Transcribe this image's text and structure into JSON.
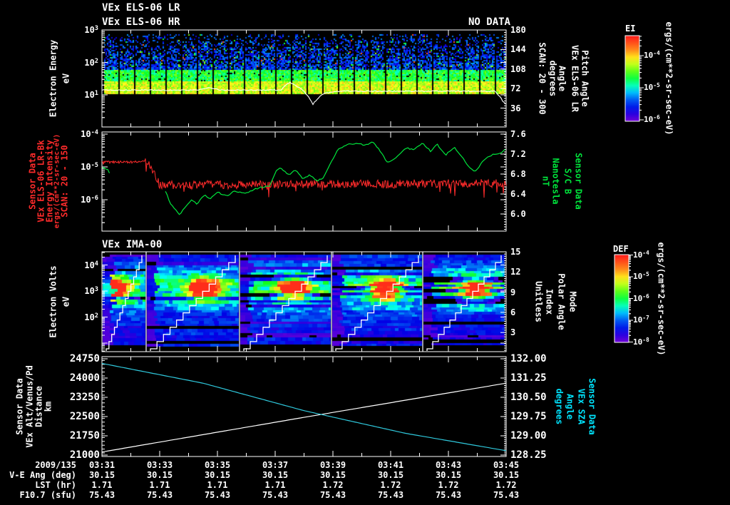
{
  "header": {
    "title_line1": "VEx ELS-06 LR",
    "title_line2": "VEx ELS-06 HR",
    "no_data": "NO DATA"
  },
  "panel3_title": "VEx IMA-00",
  "footer": {
    "date": "2009/135",
    "times": [
      "03:31",
      "03:33",
      "03:35",
      "03:37",
      "03:39",
      "03:41",
      "03:43",
      "03:45"
    ],
    "rows": [
      {
        "label": "V-E Ang (deg)",
        "values": [
          "30.15",
          "30.15",
          "30.15",
          "30.15",
          "30.15",
          "30.15",
          "30.15",
          "30.15"
        ]
      },
      {
        "label": "LST (hr)",
        "values": [
          "1.71",
          "1.71",
          "1.71",
          "1.71",
          "1.72",
          "1.72",
          "1.72",
          "1.72"
        ]
      },
      {
        "label": "F10.7 (sfu)",
        "values": [
          "75.43",
          "75.43",
          "75.43",
          "75.43",
          "75.43",
          "75.43",
          "75.43",
          "75.43"
        ]
      }
    ]
  },
  "axes": {
    "p1": {
      "left_title": [
        "Electron Energy",
        "eV"
      ],
      "left_ticks": [
        "10^3",
        "10^2",
        "10^1"
      ],
      "right_ticks": [
        "180",
        "144",
        "108",
        "72",
        "36"
      ],
      "right_cols": [
        "SCAN: 20 - 300",
        "degrees",
        "Angle",
        "VEx ELS-06 LR",
        "Pitch Angle"
      ]
    },
    "p2": {
      "left_cols": [
        "Sensor Data",
        "VEx ELS-06 LR-Bk",
        "Energy Intensity",
        "ergs/(cm**2-sr-sec-eV)",
        "SCAN: 20 - 150"
      ],
      "left_ticks": [
        "10^-4",
        "10^-5",
        "10^-6"
      ],
      "right_ticks": [
        "7.6",
        "7.2",
        "6.8",
        "6.4",
        "6.0"
      ],
      "right_cols": [
        "nT",
        "Nanotesla",
        "S/C B",
        "Sensor Data"
      ]
    },
    "p3": {
      "left_title": [
        "Electron Volts",
        "eV"
      ],
      "left_ticks": [
        "10^4",
        "10^3",
        "10^2"
      ],
      "right_ticks": [
        "15",
        "12",
        "9",
        "6",
        "3"
      ],
      "right_cols": [
        "Unitless",
        "Index",
        "Polar Angle",
        "Mode"
      ]
    },
    "p4": {
      "left_cols": [
        "Sensor Data",
        "VEx Alt/Venus/Pd",
        "Distance",
        "km"
      ],
      "left_ticks": [
        "24750",
        "24000",
        "23250",
        "22500",
        "21750",
        "21000"
      ],
      "right_ticks": [
        "132.00",
        "131.25",
        "130.50",
        "129.75",
        "129.00",
        "128.25"
      ],
      "right_cols": [
        "degrees",
        "Angle",
        "VEx SZA",
        "Sensor Data"
      ]
    }
  },
  "colorbars": [
    {
      "title": "EI",
      "ticks": [
        "10^-4",
        "10^-5",
        "10^-6"
      ],
      "units": "ergs/(cm**2-sr-sec-eV)"
    },
    {
      "title": "DEF",
      "ticks": [
        "10^-4",
        "10^-5",
        "10^-6",
        "10^-7",
        "10^-8"
      ],
      "units": "ergs/(cm**2-sr-sec-eV)"
    }
  ],
  "colors": {
    "red": "#ff2b2b",
    "green": "#00e53c",
    "cyan_label": "#00e5ff",
    "cyan_line": "#2fc8dc",
    "white": "#ffffff"
  },
  "chart_data": [
    {
      "id": "panel1",
      "type": "heatmap",
      "title": "VEx ELS-06 LR",
      "title2": "VEx ELS-06 HR",
      "annotation": "NO DATA",
      "x_axis": {
        "start": "2009/135 03:31",
        "end": "2009/135 03:45",
        "major_tick_minutes": 2,
        "minor_tick_minutes": 1
      },
      "y_axis": {
        "label": "Electron Energy (eV)",
        "scale": "log",
        "ticks": [
          "10^3",
          "10^2",
          "10^1"
        ],
        "range_ev": [
          1,
          1000
        ]
      },
      "y2_axis": {
        "label": "Pitch Angle / VEx ELS-06 LR / Angle / degrees / SCAN: 20 - 300",
        "ticks": [
          180,
          144,
          108,
          72,
          36
        ],
        "range": [
          0,
          180
        ]
      },
      "colorbar": {
        "title": "EI",
        "units": "ergs/(cm**2-sr-sec-eV)",
        "ticks": [
          "10^-4",
          "10^-5",
          "10^-6"
        ]
      },
      "features": {
        "bright_band_ev": [
          10,
          40
        ],
        "speckle_max_ev": 900,
        "sweep_gap_seconds": 32
      },
      "trace_ev_vs_min": [
        [
          0,
          14
        ],
        [
          3.3,
          14
        ],
        [
          3.7,
          17
        ],
        [
          4.1,
          14
        ],
        [
          6.2,
          14
        ],
        [
          6.5,
          24
        ],
        [
          6.9,
          15
        ],
        [
          7.3,
          5
        ],
        [
          7.7,
          11
        ],
        [
          8.2,
          13
        ],
        [
          13.6,
          13
        ],
        [
          13.9,
          6
        ],
        [
          14,
          5
        ]
      ]
    },
    {
      "id": "panel2",
      "type": "line",
      "y_axis": {
        "scale": "log",
        "ticks": [
          "10^-4",
          "10^-5",
          "10^-6"
        ]
      },
      "y2_axis": {
        "ticks": [
          7.6,
          7.2,
          6.8,
          6.4,
          6.0
        ],
        "range": [
          7.64,
          5.66
        ]
      },
      "series": [
        {
          "name": "VEx ELS-06 LR-Bk Energy Intensity",
          "units": "ergs/(cm**2-sr-sec-eV)",
          "scan": "SCAN: 20 - 150",
          "color_key": "red",
          "scale": "log10",
          "base_points": [
            [
              0,
              -4.85
            ],
            [
              1.55,
              -4.85
            ],
            [
              1.8,
              -5.2
            ],
            [
              2.0,
              -5.55
            ],
            [
              14,
              -5.5
            ]
          ],
          "noise_dex": 0.13
        },
        {
          "name": "S/C B",
          "units": "nT (Nanotesla)",
          "color_key": "green",
          "points": [
            [
              0.02,
              6.93
            ],
            [
              0.18,
              6.9
            ],
            [
              0.3,
              6.78
            ],
            null,
            [
              2.2,
              6.45
            ],
            [
              2.4,
              6.18
            ],
            [
              2.7,
              5.97
            ],
            [
              2.85,
              6.12
            ],
            [
              3.1,
              6.28
            ],
            [
              3.3,
              6.2
            ],
            [
              3.55,
              6.38
            ],
            [
              3.75,
              6.3
            ],
            [
              4,
              6.44
            ],
            [
              4.3,
              6.36
            ],
            [
              4.6,
              6.46
            ],
            [
              5,
              6.42
            ],
            [
              5.4,
              6.52
            ],
            [
              5.8,
              6.56
            ],
            [
              6.05,
              6.88
            ],
            [
              6.2,
              6.93
            ],
            [
              6.45,
              6.78
            ],
            [
              6.7,
              6.88
            ],
            [
              6.95,
              6.72
            ],
            [
              7.2,
              6.78
            ],
            [
              7.45,
              6.65
            ],
            [
              7.7,
              6.75
            ],
            [
              7.95,
              7.05
            ],
            [
              8.15,
              7.28
            ],
            [
              8.45,
              7.38
            ],
            [
              8.8,
              7.42
            ],
            [
              9.1,
              7.38
            ],
            [
              9.4,
              7.44
            ],
            [
              9.65,
              7.25
            ],
            [
              9.9,
              7.02
            ],
            [
              10.15,
              7.1
            ],
            [
              10.5,
              7.32
            ],
            [
              10.8,
              7.3
            ],
            [
              11.1,
              7.42
            ],
            [
              11.4,
              7.25
            ],
            [
              11.6,
              7.4
            ],
            [
              11.9,
              7.18
            ],
            [
              12.2,
              7.34
            ],
            [
              12.5,
              7.12
            ],
            [
              12.75,
              6.92
            ],
            [
              12.95,
              6.85
            ],
            [
              13.2,
              7.08
            ],
            [
              13.5,
              7.18
            ],
            [
              13.8,
              7.22
            ],
            [
              14,
              7.3
            ]
          ]
        }
      ]
    },
    {
      "id": "panel3",
      "type": "heatmap",
      "title": "VEx IMA-00",
      "y_axis": {
        "label": "Electron Volts (eV)",
        "scale": "log",
        "ticks": [
          "10^4",
          "10^3",
          "10^2"
        ]
      },
      "y2_axis": {
        "label": "Mode / Polar Angle / Index / Unitless",
        "ticks": [
          15,
          12,
          9,
          6,
          3
        ],
        "range": [
          0,
          15
        ]
      },
      "colorbar": {
        "title": "DEF",
        "units": "ergs/(cm**2-sr-sec-eV)",
        "ticks": [
          "10^-4",
          "10^-5",
          "10^-6",
          "10^-7",
          "10^-8"
        ]
      },
      "features": {
        "beam_energy_ev": 1000,
        "beam_centers_min": [
          0.4,
          3.53,
          6.67,
          9.8,
          12.94
        ],
        "cycle_bounds_min": [
          1.53,
          4.77,
          7.95,
          11.11
        ],
        "polar_ramp": "staircase 0-15 each cycle"
      }
    },
    {
      "id": "panel4",
      "type": "line",
      "y_axis": {
        "ticks": [
          24750,
          24000,
          23250,
          22500,
          21750,
          21000
        ],
        "range": [
          24750,
          21000
        ]
      },
      "y2_axis": {
        "ticks": [
          "132.00",
          "131.25",
          "130.50",
          "129.75",
          "129.00",
          "128.25"
        ],
        "range": [
          132.0,
          128.25
        ]
      },
      "series": [
        {
          "name": "VEx Alt/Venus/Pd Distance",
          "units": "km",
          "color_key": "white",
          "points": [
            [
              0,
              21120
            ],
            [
              7,
              22470
            ],
            [
              14,
              23800
            ]
          ]
        },
        {
          "name": "VEx SZA Angle",
          "units": "degrees",
          "color_key": "cyan",
          "points": [
            [
              0,
              131.82
            ],
            [
              3.5,
              131.05
            ],
            [
              7,
              129.98
            ],
            [
              10.5,
              129.1
            ],
            [
              14,
              128.42
            ]
          ]
        }
      ]
    }
  ]
}
